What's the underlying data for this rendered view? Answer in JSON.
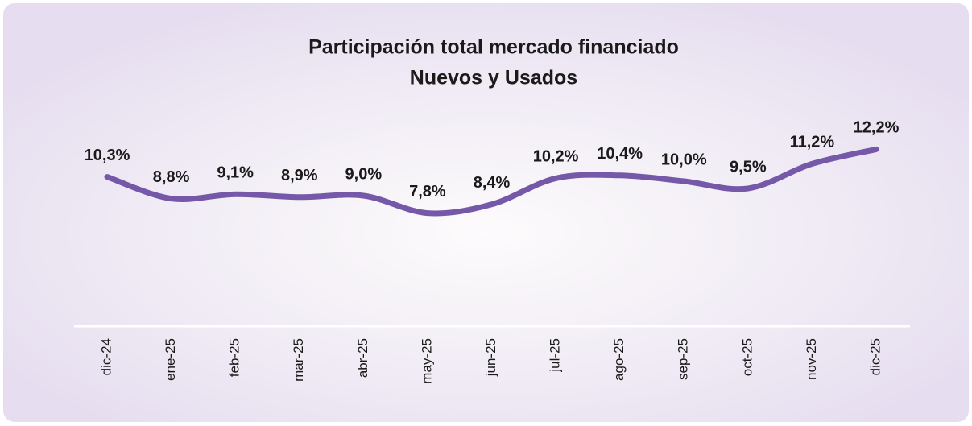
{
  "chart_data": {
    "type": "line",
    "title": "Participación total mercado financiado",
    "subtitle": "Nuevos y Usados",
    "categories": [
      "dic-24",
      "ene-25",
      "feb-25",
      "mar-25",
      "abr-25",
      "may-25",
      "jun-25",
      "jul-25",
      "ago-25",
      "sep-25",
      "oct-25",
      "nov-25",
      "dic-25"
    ],
    "series": [
      {
        "color": "#7558a8",
        "values": [
          10.3,
          8.8,
          9.1,
          8.9,
          9.0,
          7.8,
          8.4,
          10.2,
          10.4,
          10.0,
          9.5,
          11.2,
          12.2
        ],
        "value_labels": [
          "10,3%",
          "8,8%",
          "9,1%",
          "8,9%",
          "9,0%",
          "7,8%",
          "8,4%",
          "10,2%",
          "10,4%",
          "10,0%",
          "9,5%",
          "11,2%",
          "12,2%"
        ]
      }
    ],
    "ylim": [
      0,
      14
    ]
  }
}
